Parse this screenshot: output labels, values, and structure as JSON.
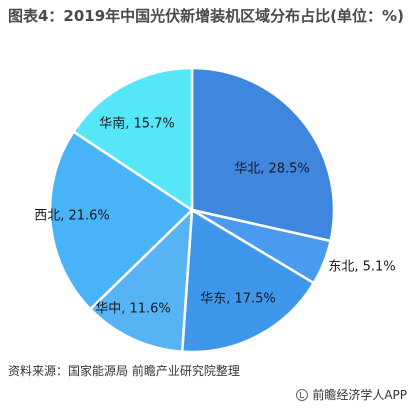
{
  "title": "图表4：2019年中国光伏新增装机区域分布占比(单位：%)",
  "chart_data": {
    "type": "pie",
    "title": "图表4：2019年中国光伏新增装机区域分布占比(单位：%)",
    "unit": "%",
    "categories": [
      "华北",
      "东北",
      "华东",
      "华中",
      "西北",
      "华南"
    ],
    "values": [
      28.5,
      5.1,
      17.5,
      11.6,
      21.6,
      15.7
    ],
    "labels": [
      "华北, 28.5%",
      "东北, 5.1%",
      "华东, 17.5%",
      "华中, 11.6%",
      "西北, 21.6%",
      "华南, 15.7%"
    ],
    "colors": [
      "#3f86df",
      "#4a9af0",
      "#3e97ea",
      "#56b4f5",
      "#48b3f7",
      "#55e6f7"
    ],
    "start_angle_deg": 0,
    "direction": "clockwise"
  },
  "source": "资料来源：国家能源局 前瞻产业研究院整理",
  "brand": "前瞻经济学人APP"
}
